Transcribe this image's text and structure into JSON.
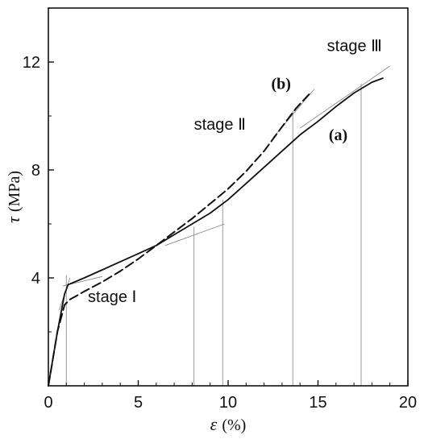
{
  "chart_data": {
    "type": "line",
    "xlabel": {
      "symbol": "ε",
      "unit": "(%)"
    },
    "ylabel": {
      "symbol": "τ",
      "unit": "(MPa)"
    },
    "xlim": [
      0,
      20
    ],
    "ylim": [
      0,
      14
    ],
    "xticks": [
      "0",
      "5",
      "10",
      "15",
      "20"
    ],
    "yticks": [
      "4",
      "8",
      "12"
    ],
    "grid": false,
    "legend": "none",
    "series": [
      {
        "name": "(a)",
        "style": "solid",
        "x": [
          0,
          0.5,
          0.9,
          1.1,
          2,
          3,
          4,
          5,
          6,
          7,
          8,
          9,
          10,
          11,
          12,
          13,
          14,
          15,
          16,
          17,
          18,
          18.6
        ],
        "y": [
          0,
          2.0,
          3.4,
          3.75,
          4.0,
          4.3,
          4.6,
          4.9,
          5.2,
          5.6,
          6.0,
          6.4,
          6.9,
          7.5,
          8.1,
          8.7,
          9.3,
          9.8,
          10.35,
          10.85,
          11.25,
          11.4
        ]
      },
      {
        "name": "(b)",
        "style": "dashed",
        "x": [
          0,
          0.5,
          0.9,
          1.2,
          2,
          3,
          4,
          5,
          6,
          7,
          8,
          9,
          10,
          11,
          12,
          13,
          13.8,
          14.5
        ],
        "y": [
          0,
          2.0,
          3.0,
          3.2,
          3.5,
          3.85,
          4.25,
          4.7,
          5.2,
          5.7,
          6.2,
          6.75,
          7.3,
          7.95,
          8.7,
          9.6,
          10.3,
          10.8
        ]
      }
    ],
    "stage_lines_x": [
      1.0,
      8.1,
      9.7,
      13.6,
      17.4
    ],
    "tangent_lines": [
      {
        "x": [
          0.6,
          1.2
        ],
        "y": [
          2.8,
          4.0
        ]
      },
      {
        "x": [
          0.8,
          3.0
        ],
        "y": [
          3.7,
          4.05
        ]
      },
      {
        "x": [
          6.5,
          9.8
        ],
        "y": [
          5.2,
          6.0
        ]
      },
      {
        "x": [
          12.5,
          14.8
        ],
        "y": [
          9.2,
          11.0
        ]
      },
      {
        "x": [
          14.0,
          19.0
        ],
        "y": [
          9.55,
          11.85
        ]
      }
    ],
    "annotations": [
      {
        "text": "stage Ⅰ",
        "x": 2.2,
        "y": 3.1,
        "kind": "stage"
      },
      {
        "text": "stage Ⅱ",
        "x": 8.1,
        "y": 9.5,
        "kind": "stage"
      },
      {
        "text": "stage Ⅲ",
        "x": 15.5,
        "y": 12.4,
        "kind": "stage"
      },
      {
        "text": "(b)",
        "x": 12.4,
        "y": 11.0,
        "kind": "series"
      },
      {
        "text": "(a)",
        "x": 15.6,
        "y": 9.1,
        "kind": "series"
      }
    ]
  }
}
